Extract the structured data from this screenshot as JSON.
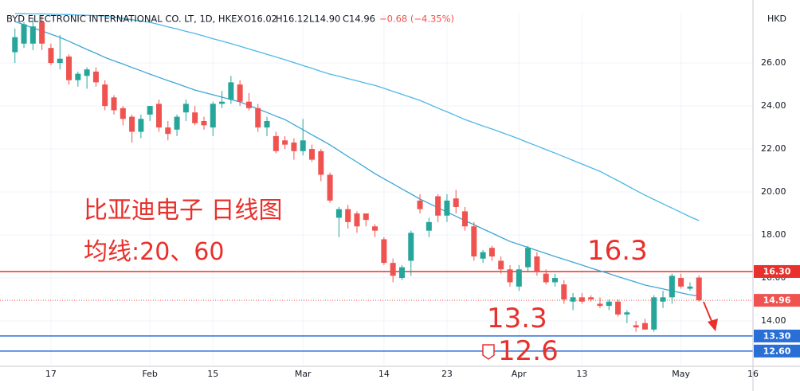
{
  "chart_data": {
    "type": "candlestick",
    "title": "BYD ELECTRONIC INTERNATIONAL CO. LT, 1D, HKEX",
    "header": {
      "open": "O16.02",
      "high": "H16.12",
      "low": "L14.90",
      "close": "C14.96",
      "change": "−0.68 (−4.35%)"
    },
    "currency": "HKD",
    "annotations": [
      "比亚迪电子 日线图",
      "均线:20、60",
      "16.3",
      "13.3",
      "12.6"
    ],
    "up_color": "#26a69a",
    "down_color": "#ef5350",
    "open": [
      26.5,
      26.9,
      26.9,
      27.9,
      26.7,
      26.0,
      26.3,
      25.2,
      25.4,
      25.6,
      25.0,
      24.4,
      23.9,
      23.5,
      22.8,
      23.6,
      24.1,
      23.0,
      22.9,
      23.7,
      23.7,
      23.3,
      23.0,
      24.1,
      24.3,
      25.0,
      24.2,
      23.9,
      23.0,
      22.6,
      22.4,
      22.3,
      21.9,
      22.0,
      21.9,
      20.8,
      18.8,
      19.2,
      19.0,
      19.0,
      18.4,
      17.8,
      16.7,
      16.0,
      16.8,
      19.6,
      18.2,
      19.8,
      18.9,
      19.7,
      19.1,
      18.4,
      16.9,
      17.4,
      16.8,
      16.4,
      15.6,
      16.5,
      17.0,
      16.2,
      15.8,
      15.7,
      14.9,
      15.1,
      15.1,
      14.8,
      14.7,
      14.9,
      14.3,
      13.8,
      13.9,
      13.6,
      14.9,
      15.1,
      16.0,
      15.5,
      16.02
    ],
    "high": [
      27.6,
      27.9,
      28.1,
      28.2,
      26.9,
      27.3,
      26.4,
      25.6,
      25.8,
      25.8,
      25.2,
      24.5,
      24.0,
      23.6,
      23.6,
      24.0,
      24.3,
      23.3,
      23.6,
      24.3,
      24.0,
      23.5,
      24.2,
      24.7,
      25.4,
      25.2,
      24.6,
      24.1,
      23.5,
      22.8,
      22.6,
      22.5,
      23.4,
      22.2,
      22.0,
      20.9,
      19.3,
      19.4,
      19.1,
      19.0,
      18.5,
      17.9,
      16.9,
      16.6,
      18.2,
      19.9,
      18.8,
      19.9,
      19.9,
      20.1,
      19.3,
      18.6,
      17.3,
      17.5,
      17.0,
      16.6,
      16.6,
      17.5,
      17.2,
      16.4,
      16.2,
      15.9,
      15.3,
      15.3,
      15.2,
      15.1,
      15.0,
      15.0,
      14.5,
      14.0,
      14.1,
      15.2,
      15.4,
      16.2,
      16.2,
      15.8,
      16.12
    ],
    "low": [
      26.0,
      26.7,
      26.6,
      26.6,
      25.9,
      25.7,
      25.0,
      24.9,
      24.8,
      24.9,
      23.8,
      23.6,
      23.1,
      22.3,
      22.5,
      23.3,
      22.8,
      22.4,
      22.6,
      23.3,
      23.1,
      22.9,
      22.6,
      23.9,
      24.1,
      24.0,
      23.8,
      22.8,
      22.6,
      21.8,
      22.0,
      21.5,
      21.7,
      21.4,
      20.5,
      19.5,
      17.9,
      18.3,
      18.1,
      18.4,
      17.9,
      16.6,
      15.8,
      15.9,
      16.1,
      19.0,
      17.9,
      18.6,
      18.6,
      19.0,
      18.2,
      16.8,
      16.7,
      16.8,
      16.2,
      15.6,
      15.4,
      16.3,
      16.1,
      15.7,
      15.6,
      14.8,
      14.5,
      14.8,
      14.9,
      14.6,
      14.5,
      14.2,
      13.9,
      13.5,
      13.6,
      13.5,
      14.6,
      14.8,
      15.5,
      15.4,
      14.9
    ],
    "close": [
      27.2,
      27.8,
      27.7,
      26.9,
      26.0,
      26.2,
      25.2,
      25.5,
      25.7,
      25.1,
      24.0,
      23.8,
      23.4,
      22.8,
      23.4,
      24.0,
      23.0,
      22.7,
      23.5,
      24.1,
      23.2,
      23.1,
      24.1,
      24.2,
      25.1,
      24.2,
      23.9,
      23.0,
      23.3,
      21.9,
      22.2,
      21.9,
      22.4,
      21.5,
      20.8,
      19.6,
      19.2,
      18.6,
      18.4,
      18.7,
      18.2,
      16.7,
      16.1,
      16.5,
      18.1,
      19.2,
      18.6,
      18.9,
      19.6,
      19.3,
      18.4,
      17.0,
      17.2,
      17.0,
      16.4,
      15.8,
      16.4,
      17.4,
      16.3,
      15.8,
      16.0,
      15.0,
      15.1,
      14.9,
      15.0,
      14.7,
      14.9,
      14.3,
      14.4,
      13.7,
      13.6,
      15.1,
      15.1,
      16.1,
      15.6,
      15.6,
      14.96
    ],
    "moving_averages": [
      {
        "color": "#3ea6d6",
        "values": [
          27.93,
          27.78,
          27.63,
          27.49,
          27.34,
          27.19,
          27.01,
          26.82,
          26.63,
          26.45,
          26.26,
          26.1,
          25.95,
          25.79,
          25.64,
          25.48,
          25.33,
          25.18,
          25.04,
          24.89,
          24.74,
          24.63,
          24.52,
          24.41,
          24.3,
          24.19,
          24.03,
          23.86,
          23.7,
          23.53,
          23.37,
          23.13,
          22.9,
          22.66,
          22.43,
          22.19,
          21.92,
          21.65,
          21.39,
          21.12,
          20.85,
          20.61,
          20.38,
          20.14,
          19.91,
          19.67,
          19.47,
          19.27,
          19.07,
          18.87,
          18.67,
          18.48,
          18.28,
          18.09,
          17.89,
          17.7,
          17.56,
          17.42,
          17.28,
          17.14,
          17.0,
          16.87,
          16.73,
          16.6,
          16.46,
          16.33,
          16.2,
          16.06,
          15.93,
          15.8,
          15.67,
          15.58,
          15.49,
          15.4,
          15.31,
          15.22,
          15.15
        ]
      },
      {
        "color": "#4db8e6",
        "values": [
          28.3,
          28.29,
          28.28,
          28.28,
          28.27,
          28.26,
          28.25,
          28.23,
          28.22,
          28.2,
          28.19,
          28.13,
          28.07,
          28.01,
          27.95,
          27.89,
          27.79,
          27.68,
          27.58,
          27.47,
          27.37,
          27.25,
          27.13,
          27.02,
          26.9,
          26.78,
          26.65,
          26.53,
          26.4,
          26.28,
          26.15,
          26.02,
          25.88,
          25.75,
          25.61,
          25.48,
          25.38,
          25.27,
          25.17,
          25.06,
          24.96,
          24.82,
          24.68,
          24.54,
          24.4,
          24.26,
          24.08,
          23.9,
          23.73,
          23.55,
          23.37,
          23.22,
          23.07,
          22.93,
          22.78,
          22.63,
          22.47,
          22.3,
          22.14,
          21.97,
          21.81,
          21.64,
          21.47,
          21.3,
          21.13,
          20.96,
          20.74,
          20.52,
          20.3,
          20.07,
          19.85,
          19.65,
          19.45,
          19.25,
          19.05,
          18.85,
          18.67
        ]
      }
    ],
    "levels": [
      {
        "value": 16.3,
        "label": "16.30",
        "color": "#e8302c",
        "style": "solid"
      },
      {
        "value": 14.96,
        "label": "14.96",
        "color": "#ef5350",
        "style": "dotted"
      },
      {
        "value": 13.3,
        "label": "13.30",
        "color": "#2a6fd6",
        "style": "solid"
      },
      {
        "value": 12.6,
        "label": "12.60",
        "color": "#2a6fd6",
        "style": "solid"
      }
    ],
    "xlim": [
      -1.66,
      82
    ],
    "xticks": [
      {
        "value": 4,
        "label": "17"
      },
      {
        "value": 15,
        "label": "Feb"
      },
      {
        "value": 22,
        "label": "15"
      },
      {
        "value": 32,
        "label": "Mar"
      },
      {
        "value": 41,
        "label": "14"
      },
      {
        "value": 48,
        "label": "23"
      },
      {
        "value": 56,
        "label": "Apr"
      },
      {
        "value": 63,
        "label": "13"
      },
      {
        "value": 74,
        "label": "May"
      },
      {
        "value": 82,
        "label": "16"
      }
    ],
    "ylim": [
      11.89,
      28.3
    ],
    "yticks": [
      {
        "value": 14,
        "label": "14.00"
      },
      {
        "value": 16,
        "label": "16.00"
      },
      {
        "value": 18,
        "label": "18.00"
      },
      {
        "value": 20,
        "label": "20.00"
      },
      {
        "value": 22,
        "label": "22.00"
      },
      {
        "value": 24,
        "label": "24.00"
      },
      {
        "value": 26,
        "label": "26.00"
      }
    ],
    "grid": true
  }
}
